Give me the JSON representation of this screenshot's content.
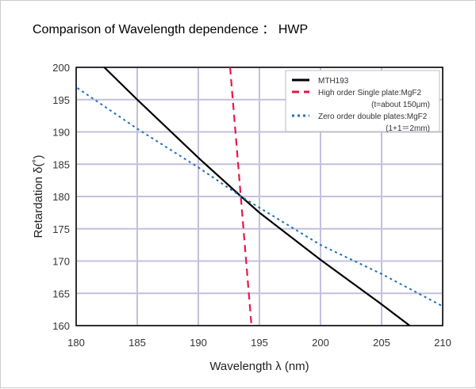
{
  "title": "Comparison of Wavelength dependence ： HWP",
  "chart_data": {
    "type": "line",
    "title": "Comparison of Wavelength dependence ： HWP",
    "xlabel": "Wavelength λ (nm)",
    "ylabel": "Retardation δ(˚)",
    "xlim": [
      180,
      210
    ],
    "ylim": [
      160,
      200
    ],
    "xticks": [
      180,
      185,
      190,
      195,
      200,
      205,
      210
    ],
    "yticks": [
      160,
      165,
      170,
      175,
      180,
      185,
      190,
      195,
      200
    ],
    "grid": true,
    "legend": "top-right",
    "series": [
      {
        "name": "MTH193",
        "sub": "",
        "color": "#000000",
        "style": "solid",
        "x": [
          182.3,
          185,
          190,
          193.5,
          195,
          200,
          205,
          207.3
        ],
        "y": [
          200,
          195,
          186,
          180,
          177.5,
          170.2,
          163.3,
          160
        ]
      },
      {
        "name": "High order Single plate:MgF2",
        "sub": "(t=about 150μm)",
        "color": "#e8174a",
        "style": "dashed",
        "x": [
          192.6,
          194.35
        ],
        "y": [
          200,
          160
        ]
      },
      {
        "name": "Zero order double plates:MgF2",
        "sub": "(1+1＝2mm)",
        "color": "#1f6fb5",
        "style": "dotted",
        "x": [
          180.1,
          185,
          190,
          193.5,
          200,
          205,
          210
        ],
        "y": [
          196.8,
          190.5,
          184.5,
          180,
          172.5,
          168,
          163
        ]
      }
    ]
  }
}
